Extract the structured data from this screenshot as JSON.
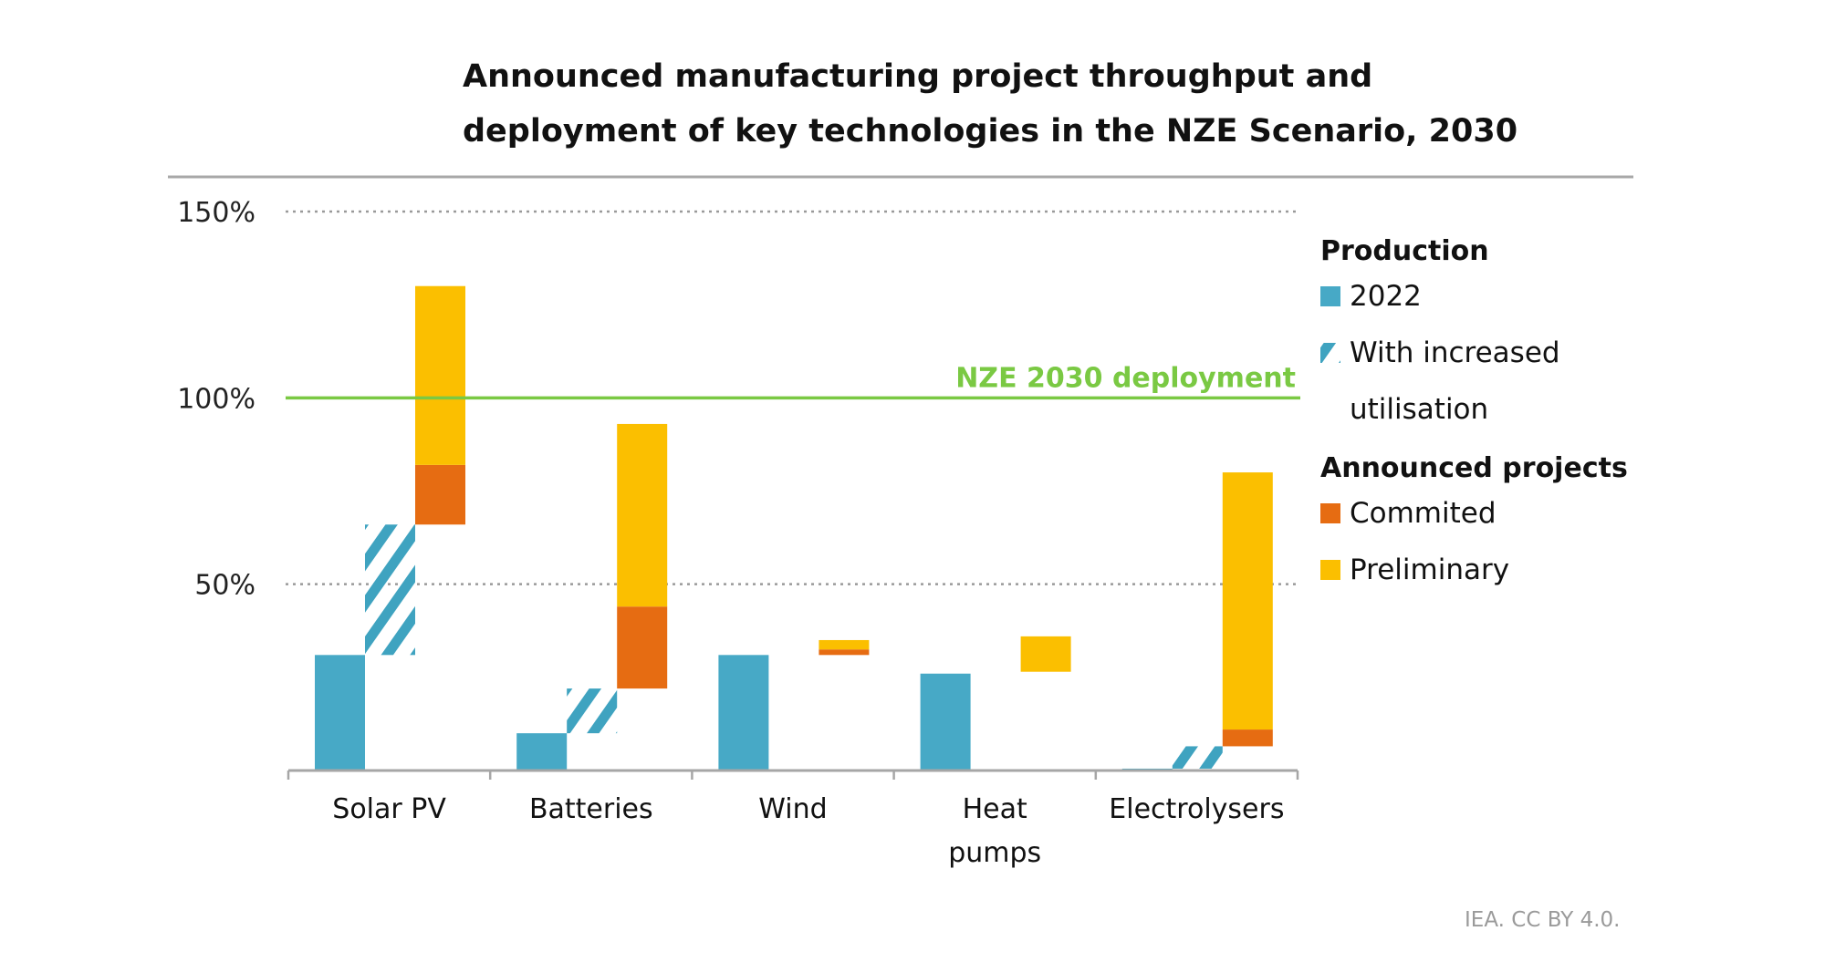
{
  "chart_data": {
    "type": "bar",
    "subtype": "stacked-floating",
    "title": [
      "Announced manufacturing project throughput and",
      "deployment of key technologies in the NZE Scenario, 2030"
    ],
    "xlabel": "",
    "ylabel": "",
    "ylim": [
      0,
      150
    ],
    "yticks": [
      {
        "value": 150,
        "label": "150%",
        "grid": "dotted"
      },
      {
        "value": 100,
        "label": "100%",
        "grid": "none"
      },
      {
        "value": 50,
        "label": "50%",
        "grid": "dotted"
      }
    ],
    "categories": [
      {
        "label": [
          "Solar PV"
        ]
      },
      {
        "label": [
          "Batteries"
        ]
      },
      {
        "label": [
          "Wind"
        ]
      },
      {
        "label": [
          "Heat",
          "pumps"
        ]
      },
      {
        "label": [
          "Electrolysers"
        ]
      }
    ],
    "units": "% of NZE 2030 deployment",
    "series": [
      {
        "name": "2022",
        "group": "Production",
        "color": "#47a9c6",
        "pattern": "solid",
        "position": 0,
        "segments": [
          [
            0,
            31
          ],
          [
            0,
            10
          ],
          [
            0,
            31
          ],
          [
            0,
            26
          ],
          [
            0,
            0.5
          ]
        ]
      },
      {
        "name": "With increased utilisation",
        "group": "Production",
        "color": "#47a9c6",
        "pattern": "hatched",
        "position": 1,
        "segments": [
          [
            31,
            66
          ],
          [
            10,
            22
          ],
          null,
          null,
          [
            0.5,
            6.5
          ]
        ]
      },
      {
        "name": "Commited",
        "group": "Announced projects",
        "color": "#e66c12",
        "pattern": "solid",
        "position": 2,
        "segments": [
          [
            66,
            82
          ],
          [
            22,
            44
          ],
          [
            31,
            32.5
          ],
          null,
          [
            6.5,
            11
          ]
        ]
      },
      {
        "name": "Preliminary",
        "group": "Announced projects",
        "color": "#fbbf00",
        "pattern": "solid",
        "position": 2,
        "segments": [
          [
            82,
            130
          ],
          [
            44,
            93
          ],
          [
            32.5,
            35
          ],
          [
            26.5,
            36
          ],
          [
            11,
            80
          ]
        ]
      }
    ],
    "reference_line": {
      "value": 100,
      "label": "NZE 2030 deployment",
      "color": "#7ac943"
    },
    "legend": {
      "placement": "right",
      "groups": [
        {
          "heading": "Production",
          "items": [
            {
              "label": [
                "2022"
              ],
              "series": 0
            },
            {
              "label": [
                "With increased",
                "utilisation"
              ],
              "series": 1
            }
          ]
        },
        {
          "heading": "Announced projects",
          "items": [
            {
              "label": [
                "Commited"
              ],
              "series": 2
            },
            {
              "label": [
                "Preliminary"
              ],
              "series": 3
            }
          ]
        }
      ]
    },
    "grid": true,
    "source": "IEA. CC BY 4.0."
  }
}
